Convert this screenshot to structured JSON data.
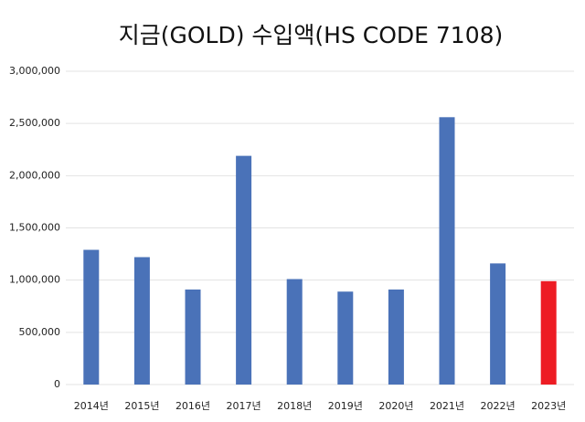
{
  "chart_data": {
    "type": "bar",
    "title": "지금(GOLD) 수입액(HS CODE 7108)",
    "categories": [
      "2014년",
      "2015년",
      "2016년",
      "2017년",
      "2018년",
      "2019년",
      "2020년",
      "2021년",
      "2022년",
      "2023년"
    ],
    "values": [
      1290000,
      1220000,
      910000,
      2190000,
      1010000,
      890000,
      910000,
      2560000,
      1160000,
      990000
    ],
    "colors": [
      "#4a72b8",
      "#4a72b8",
      "#4a72b8",
      "#4a72b8",
      "#4a72b8",
      "#4a72b8",
      "#4a72b8",
      "#4a72b8",
      "#4a72b8",
      "#ed1c24"
    ],
    "ylim": [
      0,
      3000000
    ],
    "yticks": [
      0,
      {
        "value": 500000,
        "label": "500,000"
      },
      {
        "value": 1000000,
        "label": "1,000,000"
      },
      {
        "value": 1500000,
        "label": "1,500,000"
      },
      {
        "value": 2000000,
        "label": "2,000,000"
      },
      {
        "value": 2500000,
        "label": "2,500,000"
      },
      {
        "value": 3000000,
        "label": "3,000,000"
      }
    ],
    "grid": true
  }
}
